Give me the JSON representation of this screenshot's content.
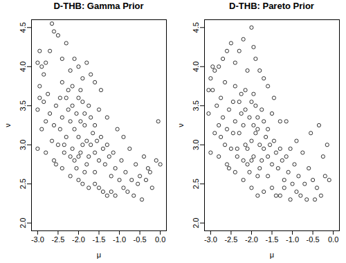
{
  "chart_data": [
    {
      "type": "scatter",
      "title": "D-THB: Gamma Prior",
      "x_label": "μ",
      "y_label": "ν",
      "color": "#000000",
      "marker": "open_circle",
      "grid": false,
      "xlim": [
        -3.15,
        0.15
      ],
      "ylim": [
        1.9,
        4.6
      ],
      "xticks": [
        {
          "value": -3,
          "label": "-3.0"
        },
        {
          "value": -2.5,
          "label": "-2.5"
        },
        {
          "value": -2,
          "label": "-2.0"
        },
        {
          "value": -1.5,
          "label": "-1.5"
        },
        {
          "value": -1,
          "label": "-1.0"
        },
        {
          "value": -0.5,
          "label": "-0.5"
        },
        {
          "value": 0,
          "label": "0.0"
        }
      ],
      "yticks": [
        {
          "value": 2,
          "label": "2.0"
        },
        2.5,
        {
          "value": 3,
          "label": "3.0"
        },
        3.5,
        {
          "value": 4,
          "label": "4.0"
        },
        4.5
      ],
      "x": [
        -2.0,
        -1.9,
        -2.1,
        -1.8,
        -2.2,
        -1.95,
        -2.05,
        -1.7,
        -2.3,
        -1.85,
        -2.15,
        -1.75,
        -2.25,
        -1.65,
        -2.35,
        -1.9,
        -2.1,
        -1.6,
        -2.4,
        -1.8,
        -2.0,
        -2.45,
        -1.55,
        -2.2,
        -1.7,
        -2.3,
        -1.5,
        -2.5,
        -1.95,
        -2.05,
        -1.45,
        -2.55,
        -1.85,
        -2.15,
        -1.4,
        -2.6,
        -1.6,
        -2.4,
        -1.35,
        -2.7,
        -1.3,
        -2.65,
        -1.25,
        -2.75,
        -1.2,
        -2.8,
        -1.15,
        -2.85,
        -1.1,
        -2.9,
        -1.0,
        -0.95,
        -0.9,
        -0.85,
        -0.8,
        -0.75,
        -0.7,
        -0.65,
        -0.6,
        -0.55,
        -0.5,
        -0.45,
        -0.4,
        -0.35,
        -0.3,
        -0.2,
        -0.1,
        0.0,
        -0.05,
        -0.25,
        -2.95,
        -3.0,
        -2.9,
        -2.8,
        -2.7,
        -2.6,
        -2.5,
        -2.4,
        -2.3,
        -2.2,
        -2.1,
        -2.0,
        -1.9,
        -1.8,
        -1.7,
        -1.6,
        -2.65,
        -2.95,
        -3.0,
        -2.85,
        -1.5,
        -1.4,
        -1.3,
        -1.2,
        -1.1,
        -1.6,
        -1.75,
        -1.9,
        -2.0,
        -2.2,
        -2.4,
        -2.6,
        -2.8,
        -3.0,
        -2.95,
        -1.05,
        -0.9,
        -1.3,
        -1.5,
        -1.45,
        -1.75,
        -2.35,
        -2.55,
        -2.0,
        -1.6,
        -2.25,
        -1.85,
        -2.45,
        -1.95,
        -2.15
      ],
      "y": [
        3.1,
        3.0,
        3.2,
        3.05,
        3.3,
        2.9,
        3.4,
        3.0,
        3.1,
        3.25,
        2.95,
        2.85,
        3.45,
        3.15,
        3.0,
        3.55,
        2.8,
        2.9,
        3.35,
        2.75,
        3.6,
        3.2,
        3.05,
        2.85,
        3.35,
        3.6,
        2.8,
        3.0,
        3.7,
        2.7,
        3.1,
        3.5,
        2.65,
        3.75,
        2.95,
        3.25,
        2.65,
        3.8,
        2.75,
        3.4,
        3.0,
        3.05,
        2.85,
        3.65,
        2.6,
        3.3,
        2.9,
        3.55,
        2.7,
        3.2,
        2.55,
        2.8,
        2.45,
        2.65,
        2.4,
        2.95,
        2.55,
        2.35,
        2.75,
        2.5,
        2.6,
        2.3,
        2.85,
        2.55,
        2.7,
        2.45,
        2.8,
        2.75,
        3.3,
        2.65,
        3.75,
        3.45,
        4.0,
        4.05,
        4.2,
        4.45,
        4.4,
        4.1,
        4.3,
        3.95,
        4.1,
        4.0,
        3.85,
        4.05,
        3.9,
        3.8,
        4.55,
        4.2,
        4.05,
        3.9,
        2.45,
        2.4,
        2.35,
        2.4,
        2.35,
        2.5,
        2.45,
        2.5,
        2.55,
        2.6,
        2.7,
        2.8,
        2.9,
        2.95,
        3.6,
        3.2,
        3.1,
        3.35,
        3.45,
        3.7,
        3.5,
        2.9,
        2.75,
        2.85,
        3.25,
        3.7,
        3.4,
        3.6,
        3.3,
        3.5
      ]
    },
    {
      "type": "scatter",
      "title": "D-THB: Pareto Prior",
      "x_label": "μ",
      "y_label": "ν",
      "color": "#000000",
      "marker": "open_circle",
      "grid": false,
      "xlim": [
        -3.15,
        0.15
      ],
      "ylim": [
        1.9,
        4.6
      ],
      "xticks": [
        {
          "value": -3,
          "label": "-3.0"
        },
        {
          "value": -2.5,
          "label": "-2.5"
        },
        {
          "value": -2,
          "label": "-2.0"
        },
        {
          "value": -1.5,
          "label": "-1.5"
        },
        {
          "value": -1,
          "label": "-1.0"
        },
        {
          "value": -0.5,
          "label": "-0.5"
        },
        {
          "value": 0,
          "label": "0.0"
        }
      ],
      "yticks": [
        {
          "value": 2,
          "label": "2.0"
        },
        2.5,
        {
          "value": 3,
          "label": "3.0"
        },
        3.5,
        {
          "value": 4,
          "label": "4.0"
        },
        4.5
      ],
      "x": [
        -2.0,
        -1.9,
        -2.1,
        -1.8,
        -2.2,
        -1.95,
        -2.05,
        -1.7,
        -2.3,
        -1.85,
        -2.15,
        -1.75,
        -2.25,
        -1.65,
        -2.35,
        -1.9,
        -2.1,
        -1.6,
        -2.4,
        -1.8,
        -2.0,
        -2.45,
        -1.55,
        -2.2,
        -1.7,
        -2.3,
        -1.5,
        -2.5,
        -1.95,
        -2.05,
        -1.45,
        -2.55,
        -1.85,
        -2.15,
        -1.4,
        -2.6,
        -1.6,
        -2.4,
        -1.35,
        -2.7,
        -1.3,
        -2.65,
        -1.25,
        -2.75,
        -1.2,
        -2.8,
        -1.15,
        -2.85,
        -1.1,
        -2.9,
        -1.0,
        -0.95,
        -0.9,
        -0.85,
        -0.8,
        -0.75,
        -0.7,
        -0.6,
        -0.5,
        -0.4,
        -0.3,
        -0.2,
        -0.15,
        -0.35,
        -0.55,
        -0.65,
        -1.05,
        -1.4,
        -1.7,
        -2.0,
        -2.95,
        -3.05,
        -2.9,
        -2.8,
        -2.7,
        -2.6,
        -2.5,
        -2.4,
        -2.2,
        -2.1,
        -2.0,
        -1.9,
        -1.8,
        -1.7,
        -1.6,
        -3.05,
        -2.95,
        -3.0,
        -2.3,
        -1.95,
        -1.5,
        -1.3,
        -1.2,
        -1.85,
        -2.2,
        -2.4,
        -2.6,
        -2.8,
        -3.0,
        -1.15,
        -0.9,
        -1.3,
        -1.5,
        -1.45,
        -1.75,
        -2.35,
        -2.55,
        -2.0,
        -1.6,
        -2.25,
        -1.85,
        -2.45,
        -1.95,
        -2.15,
        -0.45,
        -0.25,
        -0.1,
        -1.05,
        -2.75,
        -2.65
      ],
      "y": [
        3.05,
        3.15,
        2.95,
        3.0,
        3.25,
        2.85,
        3.35,
        2.95,
        3.15,
        3.2,
        3.0,
        2.8,
        3.4,
        3.1,
        2.95,
        3.5,
        2.75,
        2.85,
        3.3,
        2.7,
        3.55,
        3.15,
        3.0,
        2.8,
        3.3,
        3.55,
        2.75,
        2.95,
        3.65,
        2.65,
        3.05,
        3.45,
        2.6,
        3.7,
        2.9,
        3.2,
        2.6,
        3.75,
        2.7,
        3.35,
        2.95,
        3.0,
        2.8,
        3.6,
        2.55,
        3.25,
        2.85,
        3.5,
        2.65,
        3.15,
        2.5,
        2.75,
        2.4,
        2.6,
        2.35,
        2.9,
        2.5,
        2.7,
        2.55,
        2.45,
        2.35,
        2.6,
        3.0,
        3.25,
        3.15,
        2.3,
        2.3,
        2.35,
        2.4,
        2.45,
        3.7,
        3.4,
        3.95,
        4.0,
        4.1,
        4.2,
        4.3,
        4.05,
        4.35,
        3.95,
        4.5,
        4.1,
        3.95,
        3.85,
        3.75,
        3.7,
        4.0,
        3.85,
        4.2,
        4.25,
        2.45,
        2.35,
        2.45,
        2.35,
        2.55,
        2.65,
        2.75,
        2.85,
        2.9,
        3.3,
        3.05,
        3.3,
        3.4,
        3.6,
        3.45,
        2.85,
        2.7,
        2.8,
        3.2,
        3.65,
        3.35,
        3.55,
        3.25,
        3.45,
        2.3,
        2.85,
        2.55,
        2.95,
        3.1,
        3.8
      ]
    }
  ]
}
